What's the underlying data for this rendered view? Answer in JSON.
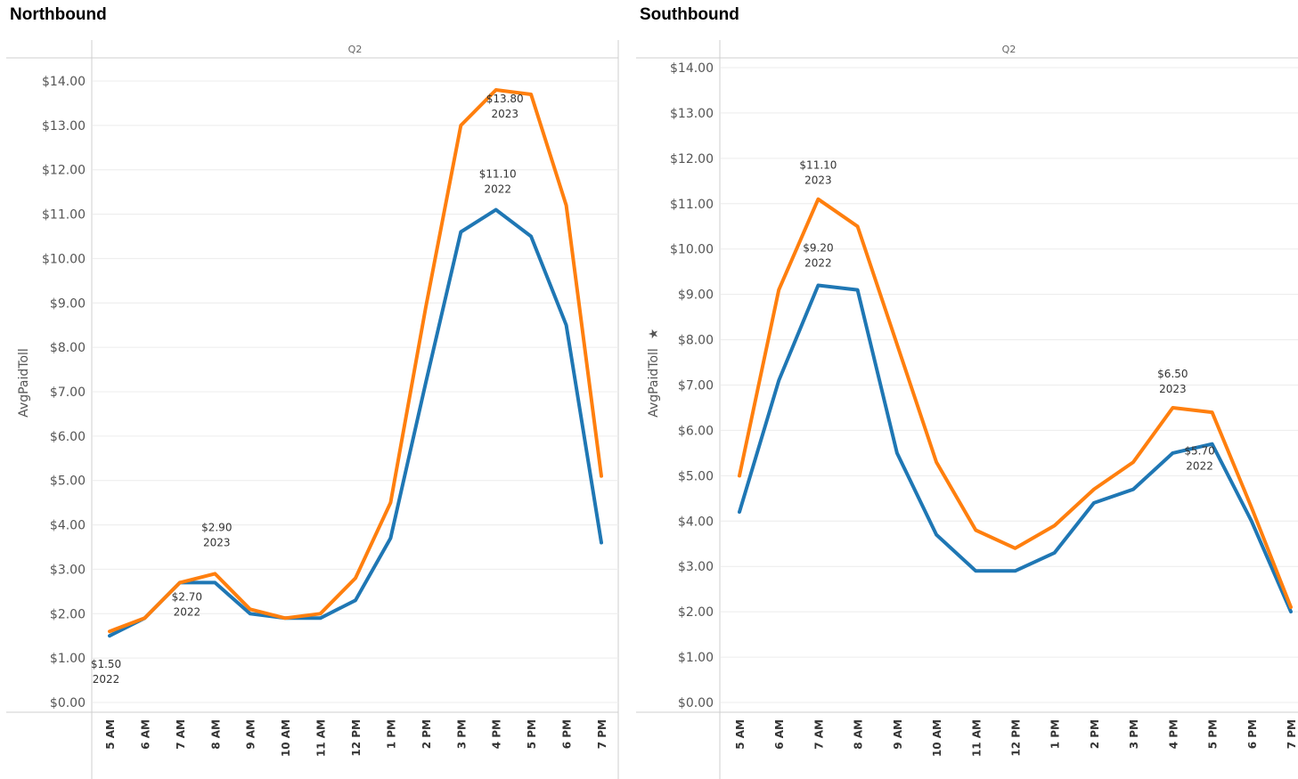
{
  "colors": {
    "series_2022": "#1f77b4",
    "series_2023": "#ff7f0e",
    "grid": "#ececec",
    "axis": "#cfcfcf"
  },
  "chart_data": [
    {
      "type": "line",
      "title": "Northbound",
      "column_header": "Q2",
      "ylabel": "AvgPaidToll",
      "ylim": [
        0,
        14.4
      ],
      "yticks": [
        "$0.00",
        "$1.00",
        "$2.00",
        "$3.00",
        "$4.00",
        "$5.00",
        "$6.00",
        "$7.00",
        "$8.00",
        "$9.00",
        "$10.00",
        "$11.00",
        "$12.00",
        "$13.00",
        "$14.00"
      ],
      "categories": [
        "5 AM",
        "6 AM",
        "7 AM",
        "8 AM",
        "9 AM",
        "10 AM",
        "11 AM",
        "12 PM",
        "1 PM",
        "2 PM",
        "3 PM",
        "4 PM",
        "5 PM",
        "6 PM",
        "7 PM"
      ],
      "series": [
        {
          "name": "2022",
          "color": "#1f77b4",
          "values": [
            1.5,
            1.9,
            2.7,
            2.7,
            2.0,
            1.9,
            1.9,
            2.3,
            3.7,
            7.2,
            10.6,
            11.1,
            10.5,
            8.5,
            3.6
          ]
        },
        {
          "name": "2023",
          "color": "#ff7f0e",
          "values": [
            1.6,
            1.9,
            2.7,
            2.9,
            2.1,
            1.9,
            2.0,
            2.8,
            4.5,
            8.9,
            13.0,
            13.8,
            13.7,
            11.2,
            5.1
          ]
        }
      ],
      "annotations": [
        {
          "cat": 0,
          "value": "$1.50",
          "year": "2022"
        },
        {
          "cat": 2,
          "value": "$2.70",
          "year": "2022"
        },
        {
          "cat": 3,
          "value": "$2.90",
          "year": "2023"
        },
        {
          "cat": 11,
          "value": "$11.10",
          "year": "2022"
        },
        {
          "cat": 11,
          "value": "$13.80",
          "year": "2023"
        }
      ],
      "grid": true,
      "legend": "none"
    },
    {
      "type": "line",
      "title": "Southbound",
      "column_header": "Q2",
      "ylabel": "AvgPaidToll",
      "ylim": [
        0,
        14.4
      ],
      "yticks": [
        "$0.00",
        "$1.00",
        "$2.00",
        "$3.00",
        "$4.00",
        "$5.00",
        "$6.00",
        "$7.00",
        "$8.00",
        "$9.00",
        "$10.00",
        "$11.00",
        "$12.00",
        "$13.00",
        "$14.00"
      ],
      "categories": [
        "5 AM",
        "6 AM",
        "7 AM",
        "8 AM",
        "9 AM",
        "10 AM",
        "11 AM",
        "12 PM",
        "1 PM",
        "2 PM",
        "3 PM",
        "4 PM",
        "5 PM",
        "6 PM",
        "7 PM"
      ],
      "series": [
        {
          "name": "2022",
          "color": "#1f77b4",
          "values": [
            4.2,
            7.1,
            9.2,
            9.1,
            5.5,
            3.7,
            2.9,
            2.9,
            3.3,
            4.4,
            4.7,
            5.5,
            5.7,
            4.0,
            2.0
          ]
        },
        {
          "name": "2023",
          "color": "#ff7f0e",
          "values": [
            5.0,
            9.1,
            11.1,
            10.5,
            7.9,
            5.3,
            3.8,
            3.4,
            3.9,
            4.7,
            5.3,
            6.5,
            6.4,
            4.3,
            2.1
          ]
        }
      ],
      "annotations": [
        {
          "cat": 2,
          "value": "$11.10",
          "year": "2023"
        },
        {
          "cat": 2,
          "value": "$9.20",
          "year": "2022"
        },
        {
          "cat": 11,
          "value": "$6.50",
          "year": "2023"
        },
        {
          "cat": 12,
          "value": "$5.70",
          "year": "2022"
        }
      ],
      "grid": true,
      "legend": "none"
    }
  ]
}
